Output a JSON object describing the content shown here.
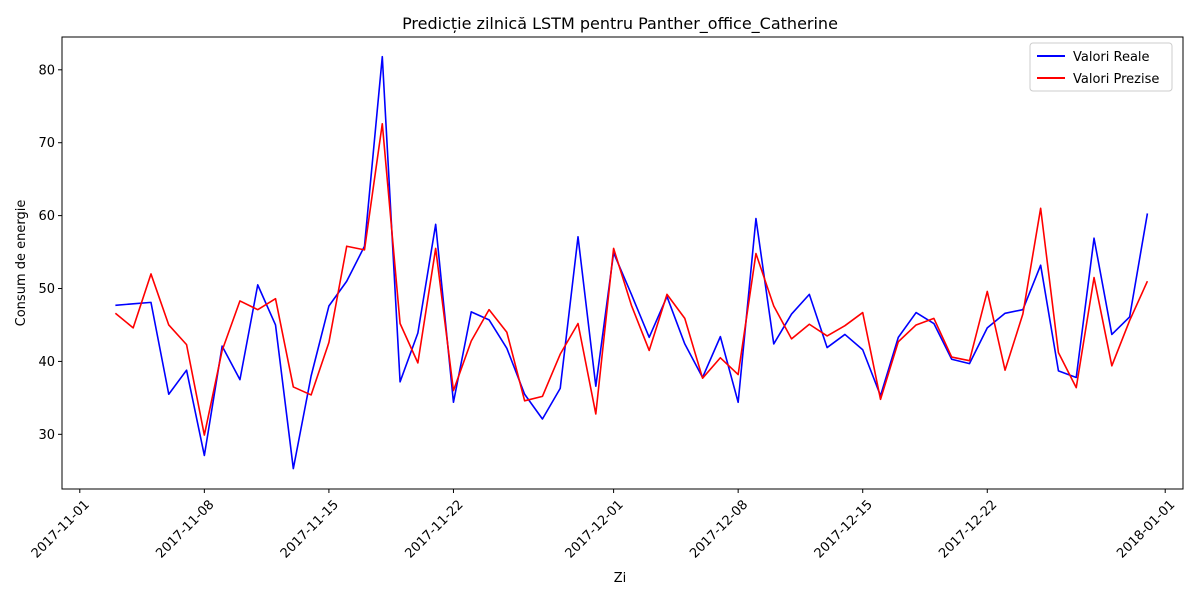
{
  "chart_data": {
    "type": "line",
    "title": "Predicție zilnică LSTM pentru Panther_office_Catherine",
    "xlabel": "Zi",
    "ylabel": "Consum de energie",
    "x_start": "2017-11-03",
    "x": [
      "2017-11-03",
      "2017-11-04",
      "2017-11-05",
      "2017-11-06",
      "2017-11-07",
      "2017-11-08",
      "2017-11-09",
      "2017-11-10",
      "2017-11-11",
      "2017-11-12",
      "2017-11-13",
      "2017-11-14",
      "2017-11-15",
      "2017-11-16",
      "2017-11-17",
      "2017-11-18",
      "2017-11-19",
      "2017-11-20",
      "2017-11-21",
      "2017-11-22",
      "2017-11-23",
      "2017-11-24",
      "2017-11-25",
      "2017-11-26",
      "2017-11-27",
      "2017-11-28",
      "2017-11-29",
      "2017-11-30",
      "2017-12-01",
      "2017-12-02",
      "2017-12-03",
      "2017-12-04",
      "2017-12-05",
      "2017-12-06",
      "2017-12-07",
      "2017-12-08",
      "2017-12-09",
      "2017-12-10",
      "2017-12-11",
      "2017-12-12",
      "2017-12-13",
      "2017-12-14",
      "2017-12-15",
      "2017-12-16",
      "2017-12-17",
      "2017-12-18",
      "2017-12-19",
      "2017-12-20",
      "2017-12-21",
      "2017-12-22",
      "2017-12-23",
      "2017-12-24",
      "2017-12-25",
      "2017-12-26",
      "2017-12-27",
      "2017-12-28",
      "2017-12-29",
      "2017-12-30",
      "2017-12-31"
    ],
    "xlim": [
      "2017-10-31",
      "2018-01-02"
    ],
    "x_ticks": [
      "2017-11-01",
      "2017-11-08",
      "2017-11-15",
      "2017-11-22",
      "2017-12-01",
      "2017-12-08",
      "2017-12-15",
      "2017-12-22",
      "2018-01-01"
    ],
    "ylim": [
      22.5,
      84.5
    ],
    "y_ticks": [
      30,
      40,
      50,
      60,
      70,
      80
    ],
    "grid": false,
    "legend_position": "top-right",
    "series": [
      {
        "name": "Valori Reale",
        "color": "#0000ff",
        "values": [
          47.7,
          47.9,
          48.1,
          35.5,
          38.8,
          27.1,
          42.1,
          37.5,
          50.5,
          45.0,
          25.3,
          38.0,
          47.6,
          51.0,
          55.8,
          81.8,
          37.2,
          43.9,
          58.8,
          34.4,
          46.8,
          45.7,
          41.8,
          35.5,
          32.1,
          36.3,
          57.1,
          36.6,
          54.9,
          49.2,
          43.3,
          48.9,
          42.4,
          37.8,
          43.4,
          34.4,
          59.6,
          42.4,
          46.5,
          49.2,
          41.9,
          43.7,
          41.6,
          35.3,
          43.3,
          46.7,
          45.2,
          40.3,
          39.7,
          44.6,
          46.6,
          47.1,
          53.2,
          38.7,
          37.8,
          56.9,
          43.7,
          46.1,
          60.3
        ]
      },
      {
        "name": "Valori Prezise",
        "color": "#ff0000",
        "values": [
          46.6,
          44.6,
          52.0,
          45.0,
          42.3,
          29.9,
          41.5,
          48.3,
          47.1,
          48.6,
          36.5,
          35.4,
          42.6,
          55.8,
          55.3,
          72.6,
          45.2,
          39.8,
          55.5,
          36.0,
          42.8,
          47.1,
          44.0,
          34.6,
          35.2,
          41.0,
          45.2,
          32.8,
          55.5,
          47.7,
          41.5,
          49.2,
          45.9,
          37.7,
          40.5,
          38.2,
          54.8,
          47.6,
          43.1,
          45.1,
          43.5,
          44.9,
          46.7,
          34.8,
          42.7,
          45.0,
          45.9,
          40.6,
          40.1,
          49.6,
          38.8,
          46.5,
          61.0,
          41.2,
          36.4,
          51.5,
          39.4,
          45.6,
          51.0
        ]
      }
    ]
  }
}
